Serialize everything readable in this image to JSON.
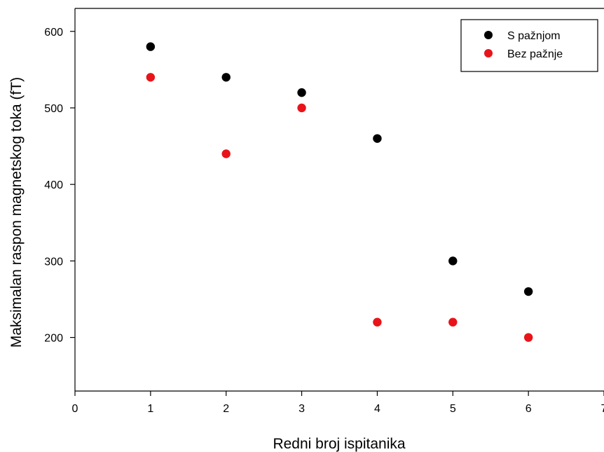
{
  "chart_data": {
    "type": "scatter",
    "title": "",
    "xlabel": "Redni broj ispitanika",
    "ylabel": "Maksimalan raspon magnetskog toka (fT)",
    "xlim": [
      0,
      7
    ],
    "ylim": [
      130,
      630
    ],
    "xticks": [
      "0",
      "1",
      "2",
      "3",
      "4",
      "5",
      "6",
      "7"
    ],
    "yticks": [
      "200",
      "300",
      "400",
      "500",
      "600"
    ],
    "grid": false,
    "legend_position": "top-right",
    "series": [
      {
        "name": "S pažnjom",
        "color": "#000000",
        "x": [
          1,
          2,
          3,
          4,
          5,
          6
        ],
        "y": [
          580,
          540,
          520,
          460,
          300,
          260
        ]
      },
      {
        "name": "Bez pažnje",
        "color": "#e8141a",
        "x": [
          1,
          2,
          3,
          4,
          5,
          6
        ],
        "y": [
          540,
          440,
          500,
          220,
          220,
          200
        ]
      }
    ]
  }
}
